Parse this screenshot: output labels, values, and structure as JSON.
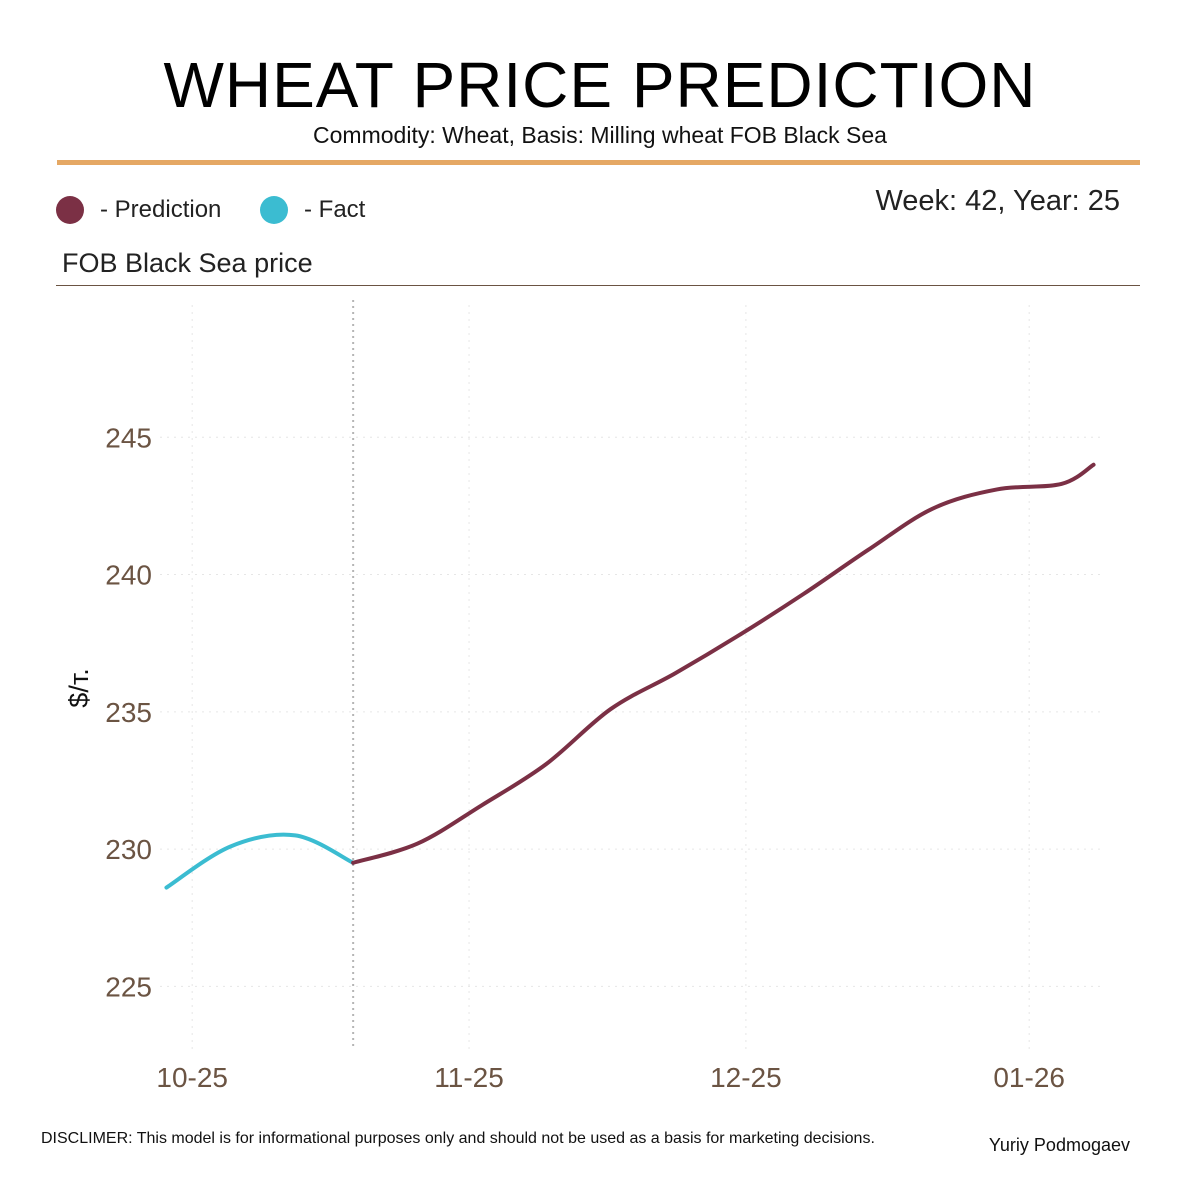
{
  "header": {
    "title": "WHEAT PRICE PREDICTION",
    "subtitle": "Commodity: Wheat, Basis: Milling wheat FOB Black Sea",
    "week": "Week: 42, Year: 25"
  },
  "legend": {
    "prediction_label": "- Prediction",
    "fact_label": "- Fact"
  },
  "colors": {
    "prediction": "#7b3045",
    "fact": "#3bbcd1",
    "accent_rule": "#e5a864",
    "axis_text": "#6b5443"
  },
  "section_title": "FOB Black Sea price",
  "footer": {
    "disclaimer": "DISCLIMER:  This model is for informational purposes only and should not be used as a basis for marketing decisions.",
    "author": "Yuriy Podmogaev"
  },
  "chart_data": {
    "type": "line",
    "title": "FOB Black Sea price",
    "xlabel": "",
    "ylabel": "$/т.",
    "ylim": [
      222.5,
      250
    ],
    "yticks": [
      225,
      230,
      235,
      240,
      245
    ],
    "xlim": [
      -0.5,
      14.1
    ],
    "xticks": [
      {
        "label": "10-25",
        "pos": 0
      },
      {
        "label": "11-25",
        "pos": 4.3
      },
      {
        "label": "12-25",
        "pos": 8.6
      },
      {
        "label": "01-26",
        "pos": 13.0
      }
    ],
    "forecast_start": 2.5,
    "grid": true,
    "series": [
      {
        "name": "Fact",
        "x": [
          -0.4,
          0.6,
          1.6,
          2.5
        ],
        "values": [
          228.6,
          230.1,
          230.5,
          229.5
        ]
      },
      {
        "name": "Prediction",
        "x": [
          2.5,
          3.5,
          4.5,
          5.5,
          6.5,
          7.5,
          8.5,
          9.5,
          10.5,
          11.5,
          12.5,
          13.5,
          14.0
        ],
        "values": [
          229.5,
          230.2,
          231.6,
          233.1,
          235.1,
          236.4,
          237.8,
          239.3,
          240.9,
          242.4,
          243.1,
          243.3,
          244.0
        ]
      }
    ]
  }
}
